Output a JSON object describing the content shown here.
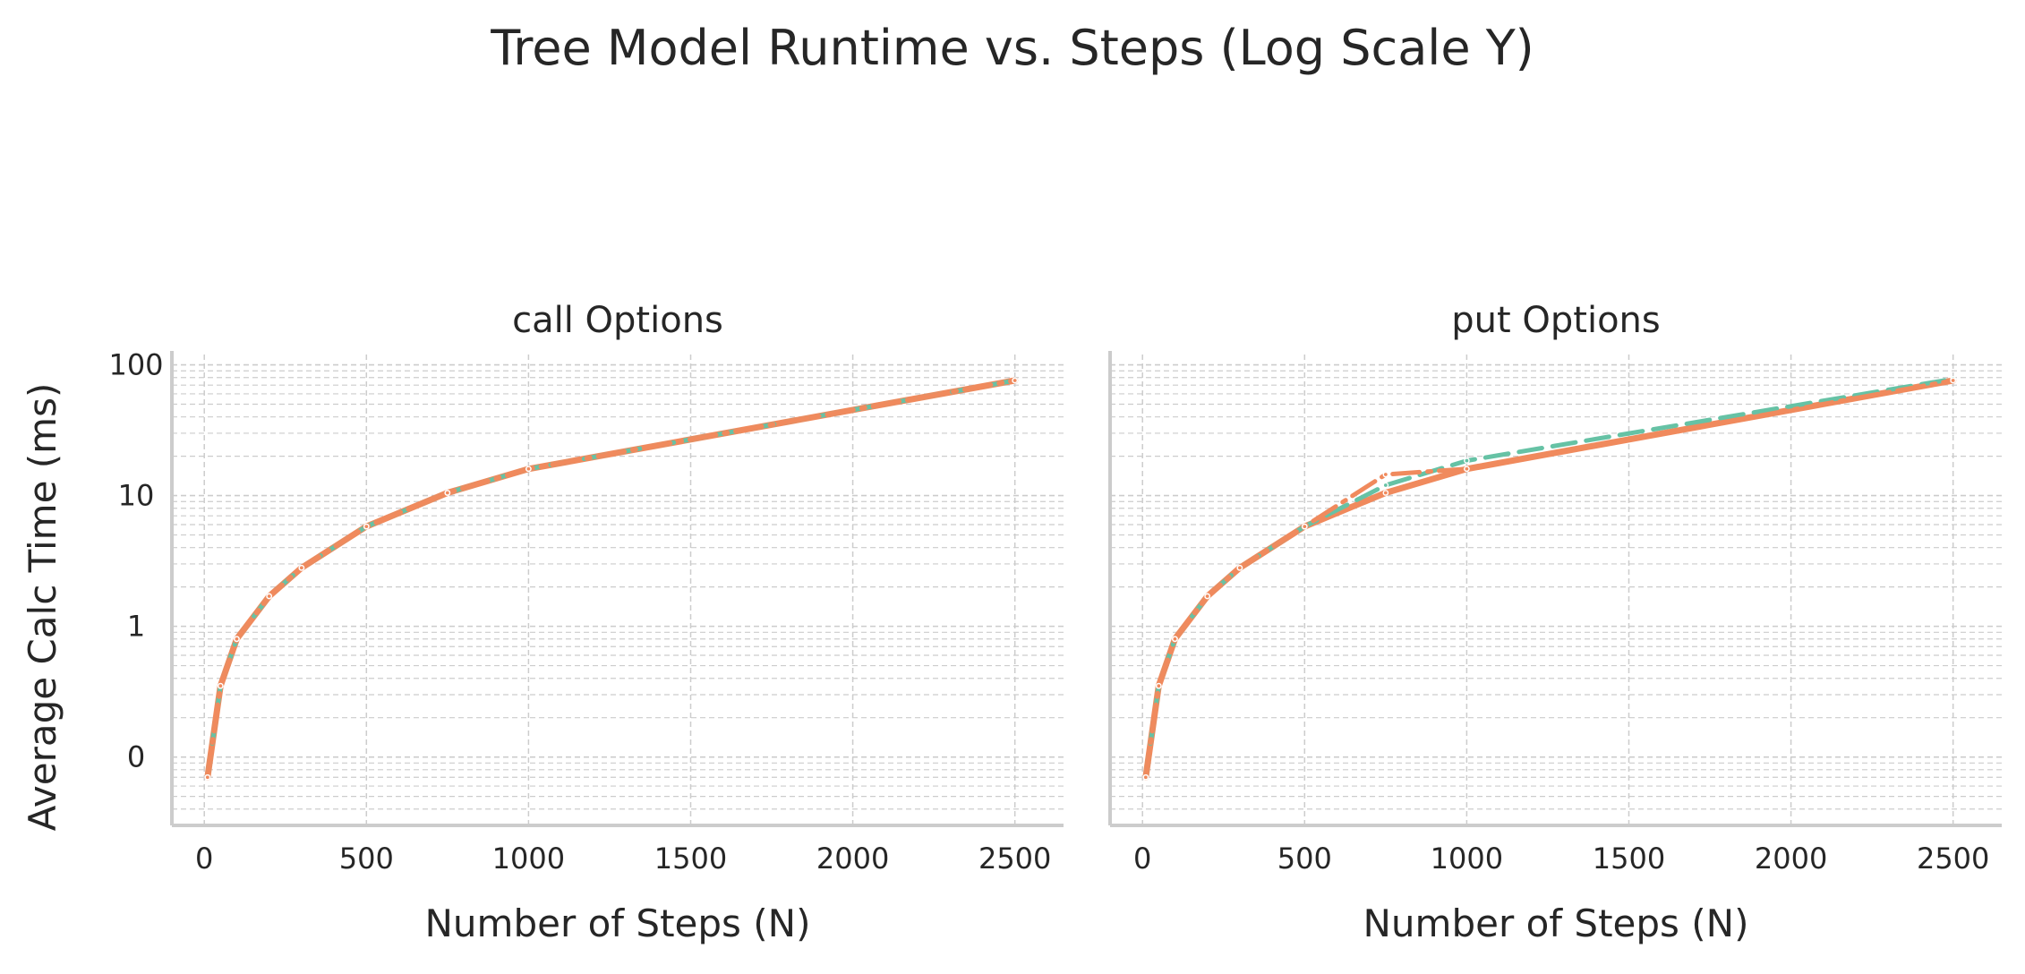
{
  "title": "Tree Model Runtime vs. Steps (Log Scale Y)",
  "colors": {
    "orange": "#f08a5d",
    "green": "#66c2a5",
    "grid": "#cccccc",
    "spine": "#cccccc"
  },
  "chart_data": [
    {
      "type": "line",
      "title": "call Options",
      "xlabel": "Number of Steps (N)",
      "ylabel": "Average Calc Time (ms)",
      "xlim": [
        -100,
        2650
      ],
      "xticks": [
        0,
        500,
        1000,
        1500,
        2000,
        2500
      ],
      "ylim": [
        0.03,
        120
      ],
      "yscale": "log",
      "yticks": [
        0.1,
        1,
        10,
        100
      ],
      "yticklabels": [
        "0",
        "1",
        "10",
        "100"
      ],
      "grid": true,
      "series": [
        {
          "style": "solid",
          "color": "orange",
          "x": [
            10,
            50,
            100,
            200,
            300,
            500,
            750,
            1000,
            2500
          ],
          "y": [
            0.07,
            0.35,
            0.8,
            1.7,
            2.8,
            5.8,
            10.5,
            16,
            76
          ]
        },
        {
          "style": "dashed",
          "color": "green",
          "x": [
            10,
            50,
            100,
            200,
            300,
            500,
            750,
            1000,
            2500
          ],
          "y": [
            0.07,
            0.35,
            0.8,
            1.7,
            2.8,
            5.8,
            10.5,
            16,
            76
          ]
        },
        {
          "style": "dashdot",
          "color": "orange",
          "x": [
            10,
            50,
            100,
            200,
            300,
            500,
            750,
            1000,
            2500
          ],
          "y": [
            0.07,
            0.35,
            0.8,
            1.7,
            2.8,
            5.8,
            10.5,
            16,
            76
          ]
        }
      ]
    },
    {
      "type": "line",
      "title": "put Options",
      "xlabel": "Number of Steps (N)",
      "ylabel": "",
      "xlim": [
        -100,
        2650
      ],
      "xticks": [
        0,
        500,
        1000,
        1500,
        2000,
        2500
      ],
      "ylim": [
        0.03,
        120
      ],
      "yscale": "log",
      "yticks": [
        0.1,
        1,
        10,
        100
      ],
      "yticklabels": [
        "",
        "",
        "",
        ""
      ],
      "grid": true,
      "series": [
        {
          "style": "solid",
          "color": "orange",
          "x": [
            10,
            50,
            100,
            200,
            300,
            500,
            750,
            1000,
            2500
          ],
          "y": [
            0.07,
            0.35,
            0.8,
            1.7,
            2.8,
            5.8,
            10.5,
            16,
            76
          ]
        },
        {
          "style": "dashed",
          "color": "green",
          "x": [
            10,
            50,
            100,
            200,
            300,
            500,
            750,
            1000,
            2500
          ],
          "y": [
            0.07,
            0.35,
            0.8,
            1.7,
            2.8,
            5.8,
            12,
            18.5,
            78
          ]
        },
        {
          "style": "dashdot",
          "color": "orange",
          "x": [
            10,
            50,
            100,
            200,
            300,
            500,
            750,
            1000,
            2500
          ],
          "y": [
            0.07,
            0.35,
            0.8,
            1.7,
            2.8,
            5.8,
            14.5,
            16,
            76
          ]
        }
      ]
    }
  ]
}
